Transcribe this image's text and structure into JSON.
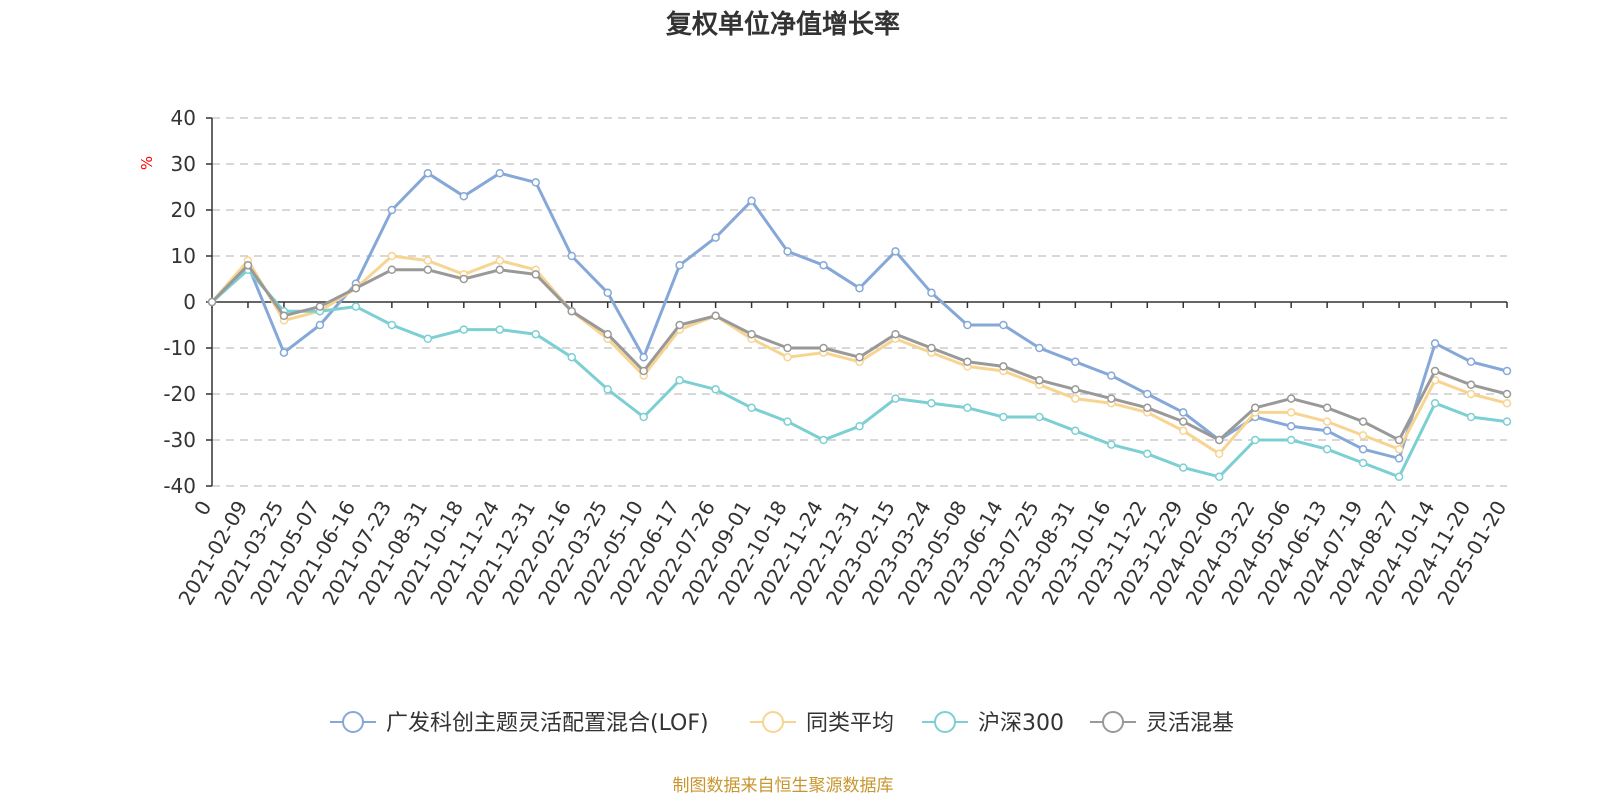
{
  "chart_data": {
    "type": "line",
    "title": "复权单位净值增长率",
    "ylabel": "%",
    "ylim": [
      -40,
      40
    ],
    "yticks": [
      40,
      30,
      20,
      10,
      0,
      -10,
      -20,
      -30,
      -40
    ],
    "categories": [
      "0",
      "2021-02-09",
      "2021-03-25",
      "2021-05-07",
      "2021-06-16",
      "2021-07-23",
      "2021-08-31",
      "2021-10-18",
      "2021-11-24",
      "2021-12-31",
      "2022-02-16",
      "2022-03-25",
      "2022-05-10",
      "2022-06-17",
      "2022-07-26",
      "2022-09-01",
      "2022-10-18",
      "2022-11-24",
      "2022-12-31",
      "2023-02-15",
      "2023-03-24",
      "2023-05-08",
      "2023-06-14",
      "2023-07-25",
      "2023-08-31",
      "2023-10-16",
      "2023-11-22",
      "2023-12-29",
      "2024-02-06",
      "2024-03-22",
      "2024-05-06",
      "2024-06-13",
      "2024-07-19",
      "2024-08-27",
      "2024-10-14",
      "2024-11-20",
      "2025-01-20"
    ],
    "series": [
      {
        "name": "广发科创主题灵活配置混合(LOF)",
        "color": "#86a8d8",
        "values": [
          0,
          8,
          -11,
          -5,
          4,
          20,
          28,
          23,
          28,
          26,
          10,
          2,
          -12,
          8,
          14,
          22,
          11,
          8,
          3,
          11,
          2,
          -5,
          -5,
          -10,
          -13,
          -16,
          -20,
          -24,
          -30,
          -25,
          -27,
          -28,
          -32,
          -34,
          -9,
          -13,
          -15
        ]
      },
      {
        "name": "同类平均",
        "color": "#f8d491",
        "values": [
          0,
          9,
          -4,
          -2,
          3,
          10,
          9,
          6,
          9,
          7,
          -2,
          -8,
          -16,
          -6,
          -3,
          -8,
          -12,
          -11,
          -13,
          -8,
          -11,
          -14,
          -15,
          -18,
          -21,
          -22,
          -24,
          -28,
          -33,
          -24,
          -24,
          -26,
          -29,
          -32,
          -17,
          -20,
          -22
        ]
      },
      {
        "name": "沪深300",
        "color": "#7ccfd2",
        "values": [
          0,
          7,
          -2,
          -2,
          -1,
          -5,
          -8,
          -6,
          -6,
          -7,
          -12,
          -19,
          -25,
          -17,
          -19,
          -23,
          -26,
          -30,
          -27,
          -21,
          -22,
          -23,
          -25,
          -25,
          -28,
          -31,
          -33,
          -36,
          -38,
          -30,
          -30,
          -32,
          -35,
          -38,
          -22,
          -25,
          -26
        ]
      },
      {
        "name": "灵活混基",
        "color": "#999999",
        "values": [
          0,
          8,
          -3,
          -1,
          3,
          7,
          7,
          5,
          7,
          6,
          -2,
          -7,
          -15,
          -5,
          -3,
          -7,
          -10,
          -10,
          -12,
          -7,
          -10,
          -13,
          -14,
          -17,
          -19,
          -21,
          -23,
          -26,
          -30,
          -23,
          -21,
          -23,
          -26,
          -30,
          -15,
          -18,
          -20
        ]
      }
    ],
    "legend_position": "bottom",
    "source_note": "制图数据来自恒生聚源数据库"
  }
}
